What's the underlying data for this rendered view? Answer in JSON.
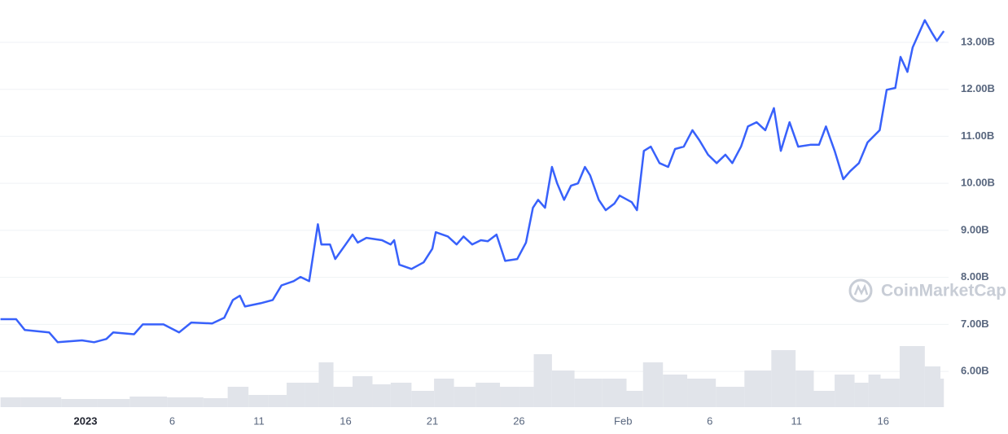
{
  "chart_data": {
    "type": "line",
    "series": [
      {
        "color": "#3861fb",
        "x": [
          -4.9,
          -4.0,
          -3.5,
          -2.1,
          -1.6,
          -0.2,
          0.5,
          1.2,
          1.6,
          2.8,
          3.3,
          4.5,
          5.4,
          6.1,
          7.3,
          8.0,
          8.5,
          8.9,
          9.2,
          10.1,
          10.8,
          11.3,
          12.0,
          12.4,
          12.9,
          13.4,
          13.6,
          14.1,
          14.4,
          15.0,
          15.4,
          15.7,
          16.2,
          17.1,
          17.6,
          17.8,
          18.1,
          18.8,
          19.5,
          20.0,
          20.2,
          20.9,
          21.4,
          21.8,
          22.3,
          22.8,
          23.2,
          23.7,
          24.2,
          24.9,
          25.4,
          25.8,
          26.1,
          26.5,
          26.9,
          27.2,
          27.6,
          28.0,
          28.4,
          28.8,
          29.1,
          29.6,
          30.0,
          30.5,
          30.8,
          31.5,
          31.8,
          32.2,
          32.6,
          33.1,
          33.6,
          34.0,
          34.5,
          35.0,
          35.4,
          35.9,
          36.4,
          36.9,
          37.3,
          37.8,
          38.2,
          38.7,
          39.2,
          39.7,
          40.1,
          40.6,
          41.1,
          41.8,
          42.3,
          42.7,
          43.2,
          43.7,
          44.1,
          44.6,
          45.1,
          45.8,
          46.2,
          46.7,
          47.0,
          47.4,
          47.7,
          48.4,
          48.8,
          49.1,
          49.5
        ],
        "values": [
          7.11,
          7.11,
          6.88,
          6.83,
          6.62,
          6.66,
          6.62,
          6.69,
          6.83,
          6.79,
          7.0,
          7.0,
          6.83,
          7.04,
          7.02,
          7.14,
          7.52,
          7.61,
          7.38,
          7.45,
          7.52,
          7.83,
          7.92,
          8.01,
          7.92,
          9.13,
          8.7,
          8.7,
          8.39,
          8.7,
          8.91,
          8.74,
          8.84,
          8.79,
          8.7,
          8.79,
          8.27,
          8.18,
          8.32,
          8.61,
          8.96,
          8.87,
          8.7,
          8.87,
          8.7,
          8.79,
          8.77,
          8.91,
          8.35,
          8.39,
          8.74,
          9.48,
          9.65,
          9.48,
          10.35,
          10.0,
          9.65,
          9.95,
          10.0,
          10.35,
          10.17,
          9.65,
          9.43,
          9.57,
          9.74,
          9.6,
          9.43,
          10.69,
          10.78,
          10.43,
          10.35,
          10.73,
          10.78,
          11.13,
          10.92,
          10.61,
          10.43,
          10.61,
          10.43,
          10.78,
          11.21,
          11.3,
          11.13,
          11.6,
          10.69,
          11.3,
          10.78,
          10.82,
          10.82,
          11.21,
          10.69,
          10.09,
          10.26,
          10.43,
          10.87,
          11.13,
          11.99,
          12.03,
          12.69,
          12.37,
          12.89,
          13.47,
          13.21,
          13.03,
          13.24
        ]
      },
      {
        "color": "#e1e4ea",
        "axis": "y2",
        "x": [
          -4.9,
          -2.6,
          -0.2,
          1.6,
          3.5,
          5.9,
          7.7,
          8.7,
          10.1,
          11.0,
          12.2,
          13.1,
          13.8,
          14.8,
          16.0,
          17.1,
          18.1,
          19.5,
          20.7,
          21.8,
          23.2,
          24.6,
          25.4,
          26.3,
          27.5,
          28.9,
          30.7,
          31.7,
          32.6,
          34.0,
          35.4,
          37.3,
          38.7,
          40.4,
          41.5,
          42.5,
          43.9,
          44.8,
          45.5,
          46.2,
          47.7,
          49.1,
          49.5
        ],
        "values": [
          2.4,
          2.4,
          2,
          2,
          2.6,
          2.4,
          2.2,
          5,
          3,
          3,
          6,
          6,
          11,
          5,
          7.6,
          5.6,
          6,
          4,
          7,
          5,
          6,
          5,
          5,
          13,
          9,
          7,
          7,
          4,
          11,
          8,
          7,
          5,
          9,
          14,
          9,
          4,
          8,
          6,
          8,
          7,
          15,
          10,
          7
        ]
      }
    ],
    "xlim": [
      -4.93,
      49.77
    ],
    "xticks": [
      {
        "value": 0,
        "label": "2023"
      },
      {
        "value": 5,
        "label": "6"
      },
      {
        "value": 10,
        "label": "11"
      },
      {
        "value": 15,
        "label": "16"
      },
      {
        "value": 20,
        "label": "21"
      },
      {
        "value": 25,
        "label": "26"
      },
      {
        "value": 31,
        "label": "Feb"
      },
      {
        "value": 36,
        "label": "6"
      },
      {
        "value": 41,
        "label": "11"
      },
      {
        "value": 46,
        "label": "16"
      }
    ],
    "ylim": [
      5.24,
      13.9
    ],
    "yticks": [
      {
        "value": 6,
        "label": "6.00B"
      },
      {
        "value": 7,
        "label": "7.00B"
      },
      {
        "value": 8,
        "label": "8.00B"
      },
      {
        "value": 9,
        "label": "9.00B"
      },
      {
        "value": 10,
        "label": "10.00B"
      },
      {
        "value": 11,
        "label": "11.00B"
      },
      {
        "value": 12,
        "label": "12.00B"
      },
      {
        "value": 13,
        "label": "13.00B"
      }
    ],
    "y2lim": [
      0,
      100
    ],
    "grid": true,
    "watermark": "CoinMarketCap"
  }
}
